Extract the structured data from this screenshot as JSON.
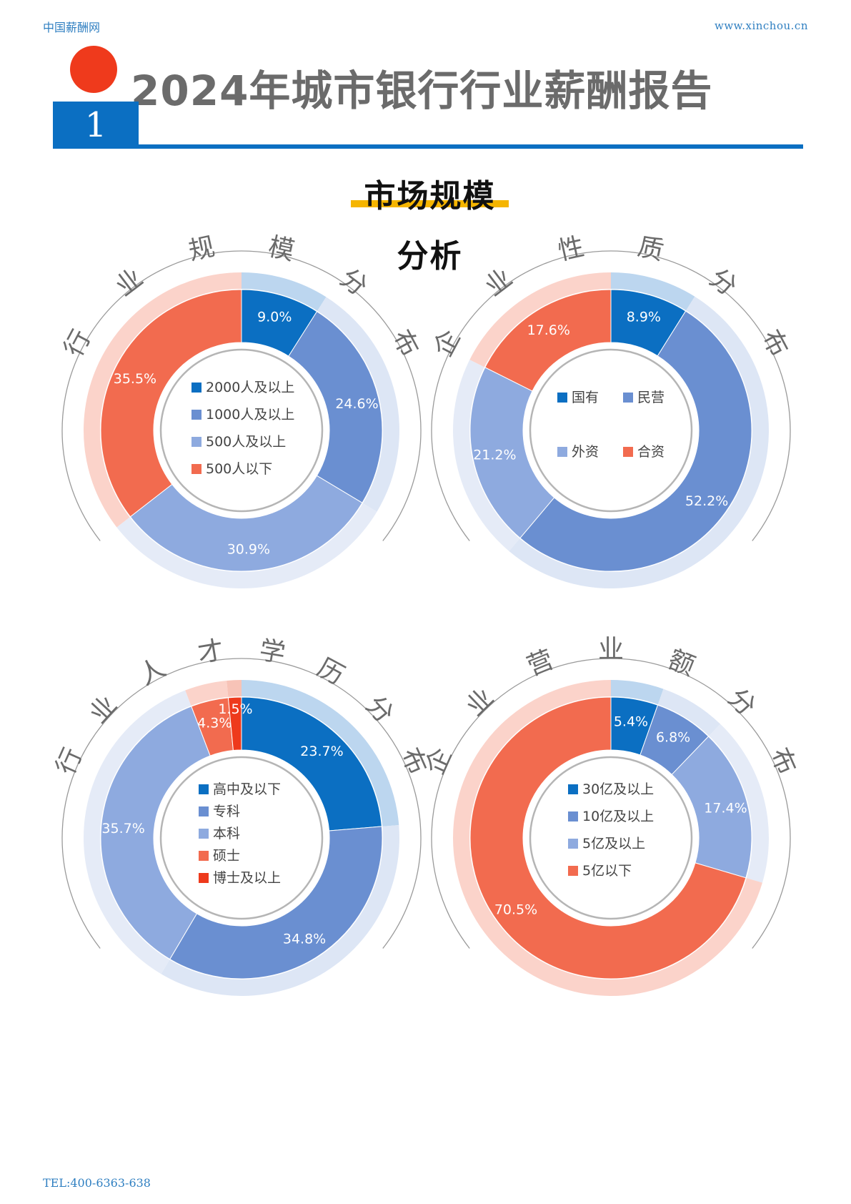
{
  "header": {
    "site_name": "中国薪酬网",
    "site_url": "www.xinchou.cn"
  },
  "report_title": "2024年城市银行行业薪酬报告",
  "section_number": "1",
  "section_title": "市场规模",
  "section_subtitle": "分析",
  "footer": {
    "tel": "TEL:400-6363-638"
  },
  "colors": {
    "c1": "#0b6fc2",
    "c2": "#6a8fd1",
    "c3": "#8eaadf",
    "c4": "#f26b4f",
    "c5": "#ee3a1c"
  },
  "chart_data": [
    {
      "type": "pie",
      "title": "行业规模分布",
      "categories": [
        "2000人及以上",
        "1000人及以上",
        "500人及以上",
        "500人以下"
      ],
      "values": [
        9.0,
        24.6,
        30.9,
        35.5
      ],
      "labels": [
        "9.0%",
        "24.6%",
        "30.9%",
        "35.5%"
      ]
    },
    {
      "type": "pie",
      "title": "企业性质分布",
      "categories": [
        "国有",
        "民营",
        "外资",
        "合资"
      ],
      "values": [
        8.9,
        52.2,
        21.2,
        17.6
      ],
      "labels": [
        "8.9%",
        "52.2%",
        "21.2%",
        "17.6%"
      ]
    },
    {
      "type": "pie",
      "title": "行业人才学历分布",
      "categories": [
        "高中及以下",
        "专科",
        "本科",
        "硕士",
        "博士及以上"
      ],
      "values": [
        23.7,
        34.8,
        35.7,
        4.3,
        1.5
      ],
      "labels": [
        "23.7%",
        "34.8%",
        "35.7%",
        "4.3%",
        "1.5%"
      ]
    },
    {
      "type": "pie",
      "title": "企业营业额分布",
      "categories": [
        "30亿及以上",
        "10亿及以上",
        "5亿及以上",
        "5亿以下"
      ],
      "values": [
        5.4,
        6.8,
        17.4,
        70.5
      ],
      "labels": [
        "5.4%",
        "6.8%",
        "17.4%",
        "70.5%"
      ]
    }
  ]
}
